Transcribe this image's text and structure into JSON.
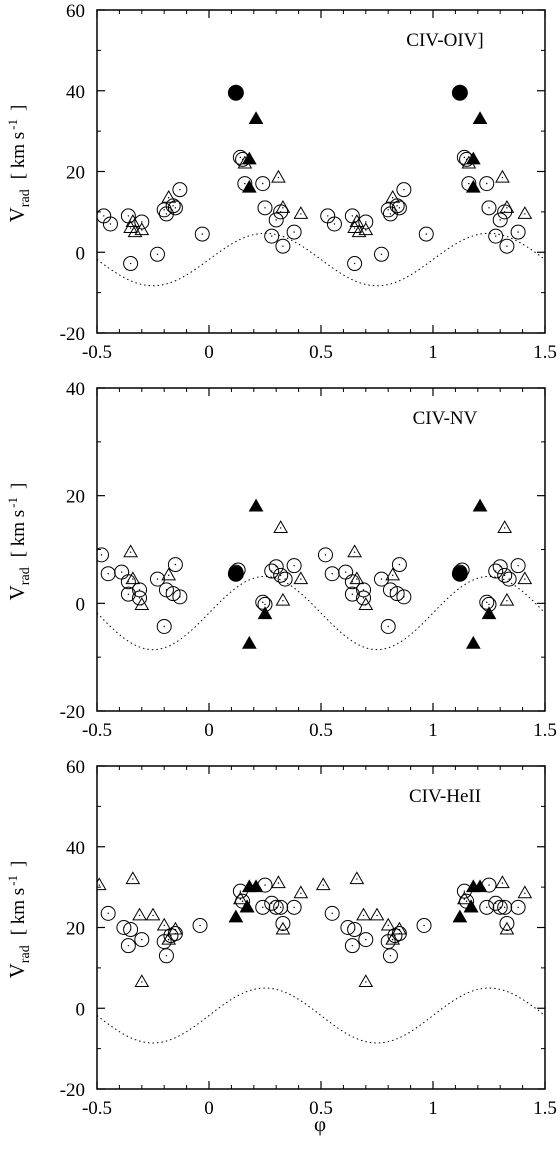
{
  "figure": {
    "xlabel": "φ",
    "ylabel_main": "V",
    "ylabel_sub": "rad",
    "ylabel_units": "[ km s",
    "ylabel_units_sup": "-1",
    "ylabel_units_close": "]"
  },
  "chart_data": [
    {
      "type": "scatter",
      "title": "CIV-OIV]",
      "xlim": [
        -0.5,
        1.5
      ],
      "ylim": [
        -20,
        60
      ],
      "xticks": [
        "-0.5",
        "0",
        "0.5",
        "1",
        "1.5"
      ],
      "yticks": [
        "-20",
        "0",
        "20",
        "40",
        "60"
      ],
      "model_curve": {
        "amplitude": 6.5,
        "offset": -1.8,
        "phase_of_max": 0.25,
        "style": "dotted"
      },
      "series": [
        {
          "marker": "open-circle",
          "points": [
            [
              -0.47,
              9.0
            ],
            [
              -0.44,
              7.0
            ],
            [
              -0.36,
              9.0
            ],
            [
              -0.35,
              -2.8
            ],
            [
              -0.3,
              7.5
            ],
            [
              -0.23,
              -0.5
            ],
            [
              -0.2,
              10.5
            ],
            [
              -0.19,
              9.5
            ],
            [
              -0.16,
              11.5
            ],
            [
              -0.15,
              11.0
            ],
            [
              -0.13,
              15.5
            ],
            [
              -0.03,
              4.5
            ],
            [
              0.14,
              23.5
            ],
            [
              0.15,
              23.0
            ],
            [
              0.16,
              17.0
            ],
            [
              0.24,
              17.0
            ],
            [
              0.25,
              11.0
            ],
            [
              0.28,
              4.0
            ],
            [
              0.3,
              8.0
            ],
            [
              0.32,
              10.0
            ],
            [
              0.33,
              1.5
            ],
            [
              0.38,
              5.0
            ]
          ]
        },
        {
          "marker": "open-triangle",
          "points": [
            [
              -0.35,
              6.0
            ],
            [
              -0.34,
              7.5
            ],
            [
              -0.33,
              5.0
            ],
            [
              -0.3,
              5.5
            ],
            [
              -0.18,
              13.5
            ],
            [
              0.16,
              22.0
            ],
            [
              0.31,
              18.5
            ],
            [
              0.33,
              11.0
            ],
            [
              0.41,
              9.5
            ]
          ]
        },
        {
          "marker": "filled-circle",
          "points": [
            [
              0.12,
              39.5
            ]
          ]
        },
        {
          "marker": "filled-triangle",
          "points": [
            [
              0.18,
              23.0
            ],
            [
              0.18,
              16.0
            ],
            [
              0.21,
              33.0
            ]
          ]
        }
      ]
    },
    {
      "type": "scatter",
      "title": "CIV-NV",
      "xlim": [
        -0.5,
        1.5
      ],
      "ylim": [
        -20,
        40
      ],
      "xticks": [
        "-0.5",
        "0",
        "0.5",
        "1",
        "1.5"
      ],
      "yticks": [
        "-20",
        "0",
        "20",
        "40"
      ],
      "model_curve": {
        "amplitude": 6.8,
        "offset": -1.8,
        "phase_of_max": 0.25,
        "style": "dotted"
      },
      "series": [
        {
          "marker": "open-circle",
          "points": [
            [
              -0.48,
              9.0
            ],
            [
              -0.45,
              5.5
            ],
            [
              -0.39,
              5.8
            ],
            [
              -0.36,
              4.0
            ],
            [
              -0.36,
              1.7
            ],
            [
              -0.31,
              2.5
            ],
            [
              -0.31,
              1.0
            ],
            [
              -0.23,
              4.5
            ],
            [
              -0.2,
              -4.3
            ],
            [
              -0.19,
              2.5
            ],
            [
              -0.16,
              1.8
            ],
            [
              -0.15,
              7.2
            ],
            [
              -0.13,
              1.2
            ],
            [
              0.12,
              5.8
            ],
            [
              0.13,
              6.2
            ],
            [
              0.24,
              0.2
            ],
            [
              0.25,
              -0.2
            ],
            [
              0.28,
              6.0
            ],
            [
              0.3,
              6.8
            ],
            [
              0.32,
              5.2
            ],
            [
              0.34,
              4.5
            ],
            [
              0.38,
              7.0
            ]
          ]
        },
        {
          "marker": "open-triangle",
          "points": [
            [
              -0.35,
              9.5
            ],
            [
              -0.34,
              4.5
            ],
            [
              -0.3,
              -0.3
            ],
            [
              -0.18,
              5.2
            ],
            [
              0.32,
              14.0
            ],
            [
              0.33,
              0.5
            ],
            [
              0.41,
              4.5
            ]
          ]
        },
        {
          "marker": "filled-circle",
          "points": [
            [
              0.12,
              5.5
            ]
          ]
        },
        {
          "marker": "filled-triangle",
          "points": [
            [
              0.18,
              -7.5
            ],
            [
              0.21,
              18.0
            ],
            [
              0.25,
              -2.0
            ]
          ]
        }
      ]
    },
    {
      "type": "scatter",
      "title": "CIV-HeII",
      "xlim": [
        -0.5,
        1.5
      ],
      "ylim": [
        -20,
        60
      ],
      "xticks": [
        "-0.5",
        "0",
        "0.5",
        "1",
        "1.5"
      ],
      "yticks": [
        "-20",
        "0",
        "20",
        "40",
        "60"
      ],
      "model_curve": {
        "amplitude": 6.8,
        "offset": -1.8,
        "phase_of_max": 0.25,
        "style": "dotted"
      },
      "series": [
        {
          "marker": "open-circle",
          "points": [
            [
              -0.45,
              23.5
            ],
            [
              -0.38,
              20.0
            ],
            [
              -0.35,
              19.5
            ],
            [
              -0.36,
              15.5
            ],
            [
              -0.3,
              17.0
            ],
            [
              -0.2,
              16.5
            ],
            [
              -0.19,
              13.0
            ],
            [
              -0.17,
              18.0
            ],
            [
              -0.15,
              18.5
            ],
            [
              -0.04,
              20.5
            ],
            [
              0.14,
              29.0
            ],
            [
              0.15,
              26.5
            ],
            [
              0.24,
              25.0
            ],
            [
              0.25,
              30.5
            ],
            [
              0.28,
              26.0
            ],
            [
              0.3,
              25.0
            ],
            [
              0.32,
              25.0
            ],
            [
              0.33,
              21.0
            ],
            [
              0.38,
              25.0
            ]
          ]
        },
        {
          "marker": "open-triangle",
          "points": [
            [
              -0.49,
              30.5
            ],
            [
              -0.34,
              32.0
            ],
            [
              -0.31,
              23.0
            ],
            [
              -0.3,
              6.5
            ],
            [
              -0.25,
              23.0
            ],
            [
              -0.2,
              20.5
            ],
            [
              -0.18,
              17.0
            ],
            [
              -0.15,
              19.5
            ],
            [
              0.14,
              27.0
            ],
            [
              0.17,
              25.0
            ],
            [
              0.31,
              31.0
            ],
            [
              0.33,
              19.5
            ],
            [
              0.41,
              28.5
            ]
          ]
        },
        {
          "marker": "filled-triangle",
          "points": [
            [
              0.12,
              22.5
            ],
            [
              0.17,
              25.0
            ],
            [
              0.18,
              30.0
            ],
            [
              0.21,
              30.0
            ]
          ]
        }
      ]
    }
  ]
}
